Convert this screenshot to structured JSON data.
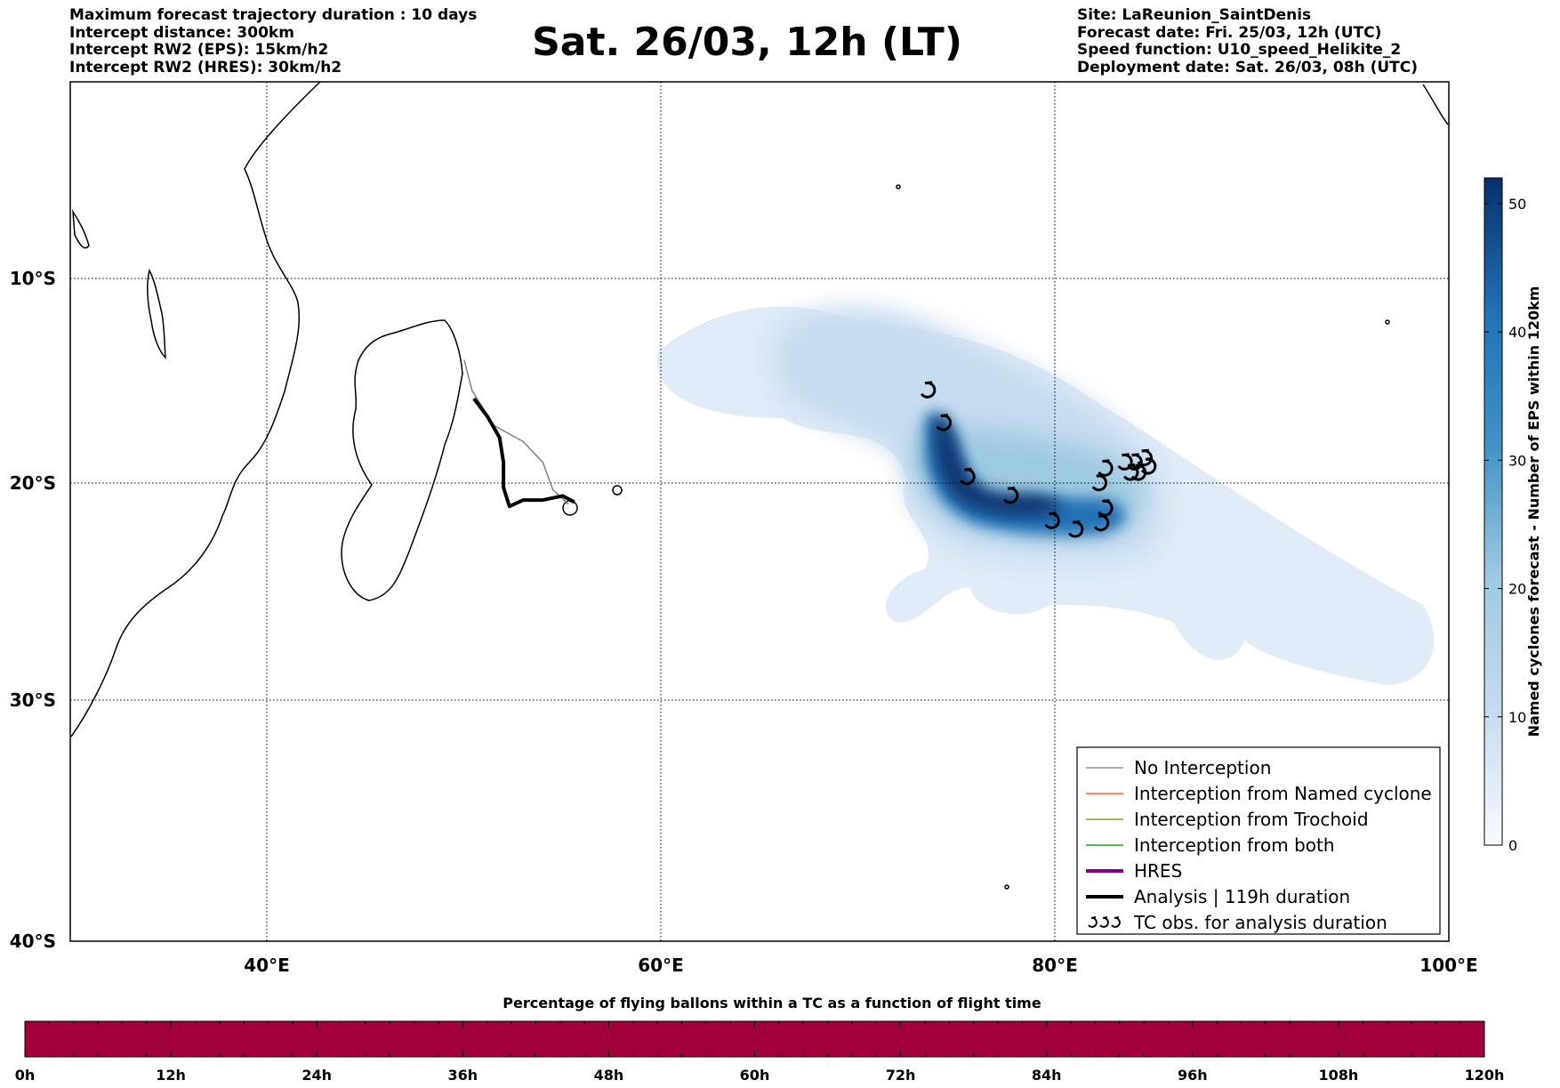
{
  "header_left": [
    "Maximum forecast trajectory duration : 10 days",
    "Intercept distance: 300km",
    "Intercept RW2 (EPS):  15km/h2",
    "Intercept RW2 (HRES): 30km/h2"
  ],
  "header_right": [
    "Site: LaReunion_SaintDenis",
    "Forecast date: Fri. 25/03, 12h (UTC)",
    "Speed function: U10_speed_Helikite_2",
    "Deployment date: Sat. 26/03, 08h (UTC)"
  ],
  "title": "Sat. 26/03, 12h (LT)",
  "map": {
    "lon_range": [
      30,
      100
    ],
    "lat_range": [
      -40,
      0
    ],
    "lon_ticks": [
      "40°E",
      "60°E",
      "80°E",
      "100°E"
    ],
    "lat_ticks": [
      "10°S",
      "20°S",
      "30°S",
      "40°S"
    ],
    "gridlines": true
  },
  "legend": {
    "placement": "lower-right",
    "items": [
      {
        "label": "No Interception",
        "color": "#808080"
      },
      {
        "label": "Interception from Named cyclone",
        "color": "#ff4500"
      },
      {
        "label": "Interception from Trochoid",
        "color": "#808000"
      },
      {
        "label": "Interception from both",
        "color": "#008000"
      },
      {
        "label": "HRES",
        "color": "#800080"
      },
      {
        "label": "Analysis | 119h duration",
        "color": "#000000"
      },
      {
        "label": "TC obs. for analysis duration",
        "color": "#000000",
        "icon": "tc-symbol-icon"
      }
    ]
  },
  "colorbar_right": {
    "label": "Named cyclones forecast - Number of EPS within 120km",
    "ticks": [
      "0",
      "10",
      "20",
      "30",
      "40",
      "50"
    ],
    "range": [
      0,
      52
    ],
    "colormap": "Blues"
  },
  "colorbar_bottom": {
    "title": "Percentage of flying ballons within a TC as a function of flight time",
    "ticks": [
      "0h",
      "12h",
      "24h",
      "36h",
      "48h",
      "60h",
      "72h",
      "84h",
      "96h",
      "108h",
      "120h"
    ],
    "fill_color": "#a1003b"
  },
  "chart_data": {
    "type": "map",
    "analysis_track_lonlat": [
      [
        50.5,
        -15.9
      ],
      [
        51.2,
        -16.8
      ],
      [
        51.8,
        -17.8
      ],
      [
        52.0,
        -19.0
      ],
      [
        52.0,
        -20.2
      ],
      [
        52.3,
        -21.1
      ],
      [
        53.0,
        -20.8
      ],
      [
        54.0,
        -20.8
      ],
      [
        55.0,
        -20.6
      ],
      [
        55.6,
        -20.9
      ]
    ],
    "no_interception_track_lonlat": [
      [
        50.0,
        -14.0
      ],
      [
        50.4,
        -15.5
      ],
      [
        51.5,
        -17.2
      ],
      [
        53.0,
        -18.0
      ],
      [
        54.0,
        -19.0
      ],
      [
        54.5,
        -20.3
      ],
      [
        55.3,
        -21.0
      ]
    ],
    "tc_obs_lonlat": [
      [
        73.5,
        -15.5
      ],
      [
        74.3,
        -17.1
      ],
      [
        75.5,
        -19.7
      ],
      [
        77.7,
        -20.6
      ],
      [
        79.8,
        -21.8
      ],
      [
        81.0,
        -22.2
      ],
      [
        82.2,
        -20.0
      ],
      [
        82.5,
        -19.3
      ],
      [
        82.3,
        -21.9
      ],
      [
        82.5,
        -21.2
      ],
      [
        83.5,
        -19.0
      ],
      [
        84.0,
        -19.0
      ],
      [
        84.5,
        -18.8
      ],
      [
        83.8,
        -19.5
      ],
      [
        84.2,
        -19.5
      ],
      [
        84.7,
        -19.2
      ]
    ]
  }
}
